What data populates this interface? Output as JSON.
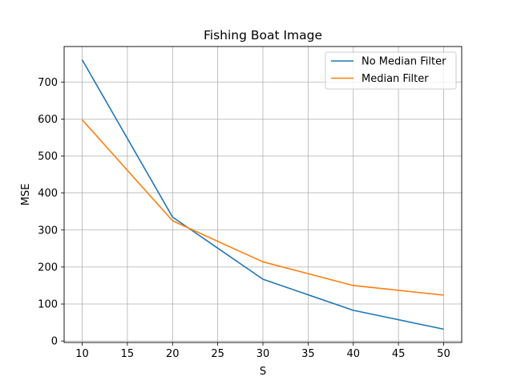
{
  "chart_data": {
    "type": "line",
    "title": "Fishing Boat Image",
    "xlabel": "S",
    "ylabel": "MSE",
    "x": [
      10,
      20,
      30,
      40,
      50
    ],
    "series": [
      {
        "name": "No Median Filter",
        "values": [
          760,
          335,
          167,
          83,
          32
        ],
        "color": "#1f77b4"
      },
      {
        "name": "Median Filter",
        "values": [
          598,
          325,
          214,
          150,
          124
        ],
        "color": "#ff7f0e"
      }
    ],
    "xlim": [
      8,
      52
    ],
    "ylim": [
      -4,
      796
    ],
    "xticks": [
      10,
      15,
      20,
      25,
      30,
      35,
      40,
      45,
      50
    ],
    "yticks": [
      0,
      100,
      200,
      300,
      400,
      500,
      600,
      700
    ],
    "grid": true,
    "legend_position": "upper-right"
  }
}
